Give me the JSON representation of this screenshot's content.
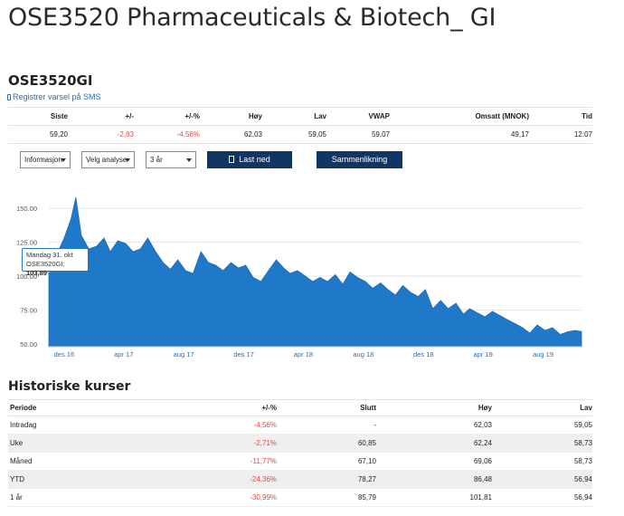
{
  "page_title": "OSE3520 Pharmaceuticals & Biotech_ GI",
  "ticker": "OSE3520GI",
  "sms_link": "Registrer varsel på SMS",
  "quote": {
    "headers": [
      "Siste",
      "+/-",
      "+/-%",
      "Høy",
      "Lav",
      "VWAP",
      "Omsatt (MNOK)",
      "Tid"
    ],
    "values": [
      "59,20",
      "-2,83",
      "-4,56%",
      "62,03",
      "59,05",
      "59,07",
      "49,17",
      "12:07"
    ]
  },
  "controls": {
    "info_select": "Informasjon",
    "analysis_select": "Velg analyse",
    "period_select": "3 år",
    "download_button": "Last ned",
    "compare_button": "Sammenlikning"
  },
  "tooltip": {
    "date": "Mandag 31. okt",
    "series": "OSE3520GI:",
    "value": "103,89"
  },
  "colors": {
    "accent": "#123663",
    "area": "#1f78c8",
    "negative": "#e0494a"
  },
  "chart_data": {
    "type": "area",
    "title": "",
    "xlabel": "",
    "ylabel": "",
    "ylim": [
      48,
      162
    ],
    "yticks": [
      "50.00",
      "75.00",
      "100.00",
      "125.00",
      "150.00"
    ],
    "xticks": [
      "des 16",
      "apr 17",
      "aug 17",
      "des 17",
      "apr 18",
      "aug 18",
      "des 18",
      "apr 19",
      "aug 19"
    ],
    "series": [
      {
        "x": [
          "2016-10-31",
          "2016-11-15",
          "2016-12-01",
          "2016-12-15",
          "2016-12-25",
          "2017-01-05",
          "2017-01-20",
          "2017-02-05",
          "2017-02-20",
          "2017-03-05",
          "2017-03-20",
          "2017-04-05",
          "2017-04-20",
          "2017-05-05",
          "2017-05-20",
          "2017-06-05",
          "2017-06-20",
          "2017-07-05",
          "2017-07-20",
          "2017-08-05",
          "2017-08-20",
          "2017-09-05",
          "2017-09-20",
          "2017-10-05",
          "2017-10-20",
          "2017-11-05",
          "2017-11-20",
          "2017-12-05",
          "2017-12-20",
          "2018-01-05",
          "2018-01-20",
          "2018-02-05",
          "2018-02-20",
          "2018-03-05",
          "2018-03-20",
          "2018-04-05",
          "2018-04-20",
          "2018-05-05",
          "2018-05-20",
          "2018-06-05",
          "2018-06-20",
          "2018-07-05",
          "2018-07-20",
          "2018-08-05",
          "2018-08-20",
          "2018-09-05",
          "2018-09-20",
          "2018-10-05",
          "2018-10-20",
          "2018-11-05",
          "2018-11-20",
          "2018-12-05",
          "2018-12-20",
          "2019-01-05",
          "2019-01-20",
          "2019-02-05",
          "2019-02-20",
          "2019-03-05",
          "2019-03-20",
          "2019-04-05",
          "2019-04-20",
          "2019-05-05",
          "2019-05-20",
          "2019-06-05",
          "2019-06-20",
          "2019-07-05",
          "2019-07-20",
          "2019-08-05",
          "2019-08-20",
          "2019-09-05",
          "2019-09-20",
          "2019-10-05",
          "2019-10-18"
        ],
        "values": [
          103.89,
          115,
          128,
          142,
          158,
          130,
          120,
          122,
          128,
          118,
          126,
          124,
          118,
          120,
          128,
          118,
          110,
          105,
          112,
          104,
          102,
          118,
          110,
          108,
          104,
          110,
          106,
          108,
          99,
          96,
          104,
          112,
          106,
          102,
          104,
          100,
          96,
          99,
          96,
          101,
          94,
          103,
          99,
          96,
          91,
          95,
          90,
          86,
          93,
          88,
          85,
          90,
          76,
          82,
          76,
          80,
          72,
          76,
          73,
          70,
          74,
          71,
          68,
          65,
          62,
          58,
          64,
          60,
          62,
          57,
          59,
          60,
          59.2
        ]
      }
    ]
  },
  "history": {
    "title": "Historiske kurser",
    "headers": [
      "Periode",
      "+/-%",
      "Slutt",
      "Høy",
      "Lav"
    ],
    "rows": [
      [
        "Intradag",
        "-4,56%",
        "-",
        "62,03",
        "59,05"
      ],
      [
        "Uke",
        "-2,71%",
        "60,85",
        "62,24",
        "58,73"
      ],
      [
        "Måned",
        "-11,77%",
        "67,10",
        "69,06",
        "58,73"
      ],
      [
        "YTD",
        "-24,36%",
        "78,27",
        "86,48",
        "56,94"
      ],
      [
        "1 år",
        "-30,99%",
        "85,79",
        "101,81",
        "56,94"
      ]
    ]
  }
}
